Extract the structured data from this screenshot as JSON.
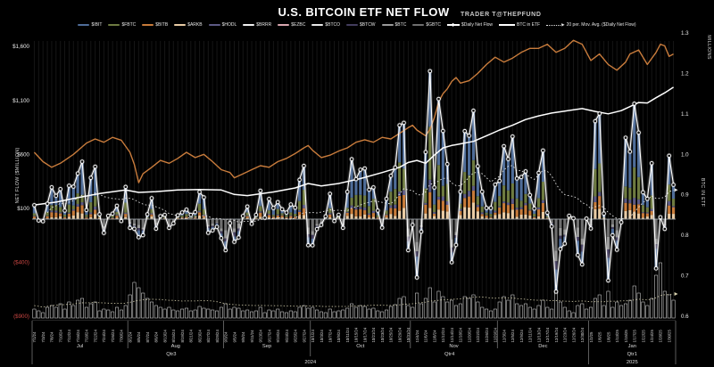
{
  "header": {
    "title": "U.S. BITCOIN ETF NET FLOW",
    "subtitle": "TRADER T@THEPFUND"
  },
  "axes": {
    "left": {
      "title": "NET FLOW ($MILLION)",
      "ticks": [
        {
          "label": "$1,600",
          "value": 1600
        },
        {
          "label": "$1,100",
          "value": 1100
        },
        {
          "label": "$600",
          "value": 600
        },
        {
          "label": "$100",
          "value": 100
        },
        {
          "label": "($400)",
          "value": -400
        },
        {
          "label": "($900)",
          "value": -900
        }
      ]
    },
    "right": {
      "title": "BTC IN ETF",
      "unit_label": "MILLIONS",
      "ticks": [
        {
          "label": "1.3",
          "value": 1.3
        },
        {
          "label": "1.2",
          "value": 1.2
        },
        {
          "label": "1.1",
          "value": 1.1
        },
        {
          "label": "1.0",
          "value": 1.0
        },
        {
          "label": "0.9",
          "value": 0.9
        },
        {
          "label": "0.8",
          "value": 0.8
        },
        {
          "label": "0.7",
          "value": 0.7
        },
        {
          "label": "0.6",
          "value": 0.6
        }
      ]
    }
  },
  "legend": {
    "etfs": [
      {
        "label": "$IBIT",
        "color": "#4f6d99"
      },
      {
        "label": "$FBTC",
        "color": "#6e7b41"
      },
      {
        "label": "$BITB",
        "color": "#c77b3a"
      },
      {
        "label": "$ARKB",
        "color": "#e9cba4"
      },
      {
        "label": "$HODL",
        "color": "#5d5a85"
      },
      {
        "label": "$BRRR",
        "color": "#f0f0f0"
      },
      {
        "label": "$EZBC",
        "color": "#d9a7b0"
      },
      {
        "label": "$BTCO",
        "color": "#e8e8e8"
      },
      {
        "label": "$BTCW",
        "color": "#433d5e"
      },
      {
        "label": "$BTC",
        "color": "#9a9a9a"
      },
      {
        "label": "$GBTC",
        "color": "#6f6f6f"
      }
    ],
    "lines": [
      {
        "label": "$Daily Net Flow",
        "style": "marker"
      },
      {
        "label": "BTC in ETF",
        "style": "solid"
      },
      {
        "label": "20 per. Mov. Avg. ($Daily Net Flow)",
        "style": "dotted-arrow"
      }
    ]
  },
  "colors": {
    "background": "#000000",
    "daily_line": "#ffffff",
    "btc_in_etf_line": "#ffffff",
    "orange_line": "#c97c3c",
    "ma_line": "#e6e6e6",
    "activity_outline": "#c8c8c8",
    "activity_ma": "#d8d2ae",
    "grid": "#161616",
    "zero_line": "#9aa0a6",
    "separator": "#9b9b9b",
    "tick": "#e9e9e9",
    "negative_tick": "#cc4743",
    "date": "#d6d6d6"
  },
  "chart_data": {
    "type": "composite",
    "ylim_left": [
      -900,
      1600
    ],
    "ylim_right": [
      0.6,
      1.3
    ],
    "ma_window": 20,
    "months": [
      [
        "Jul",
        "7",
        "24",
        [
          1,
          2,
          3,
          5,
          8,
          9,
          10,
          11,
          12,
          15,
          16,
          17,
          18,
          19,
          22,
          23,
          24,
          25,
          26,
          29,
          30,
          31
        ]
      ],
      [
        "Aug",
        "8",
        "24",
        [
          1,
          2,
          5,
          6,
          7,
          8,
          9,
          12,
          13,
          14,
          15,
          16,
          19,
          20,
          21,
          22,
          23,
          26,
          27,
          28,
          29,
          30
        ]
      ],
      [
        "Sep",
        "9",
        "24",
        [
          3,
          4,
          5,
          6,
          9,
          10,
          11,
          12,
          13,
          16,
          17,
          18,
          19,
          20,
          23,
          24,
          25,
          26,
          27,
          30
        ]
      ],
      [
        "Oct",
        "10",
        "24",
        [
          1,
          2,
          3,
          4,
          7,
          8,
          9,
          10,
          11,
          14,
          15,
          16,
          17,
          18,
          21,
          22,
          23,
          24,
          25,
          28,
          29,
          30,
          31
        ]
      ],
      [
        "Nov",
        "11",
        "24",
        [
          1,
          4,
          5,
          6,
          7,
          8,
          11,
          12,
          13,
          14,
          15,
          18,
          19,
          20,
          21,
          22,
          25,
          26,
          27,
          29
        ]
      ],
      [
        "Dec",
        "12",
        "24",
        [
          2,
          3,
          4,
          5,
          6,
          9,
          10,
          11,
          12,
          13,
          16,
          17,
          18,
          19,
          20,
          23,
          24,
          26,
          27,
          30,
          31
        ]
      ],
      [
        "Jan",
        "1",
        "25",
        [
          2,
          3,
          6,
          7,
          8,
          10,
          13,
          14,
          15,
          16,
          17,
          21,
          22,
          23,
          24,
          27,
          28,
          29,
          30,
          31
        ]
      ]
    ],
    "quarters": [
      {
        "label": "Qtr3",
        "month_span": [
          0,
          2
        ]
      },
      {
        "label": "Qtr4",
        "month_span": [
          3,
          5
        ]
      },
      {
        "label": "Qtr1",
        "month_span": [
          6,
          6
        ]
      }
    ],
    "years": [
      {
        "label": "2024",
        "month_span": [
          0,
          5
        ]
      },
      {
        "label": "2025",
        "month_span": [
          6,
          6
        ]
      }
    ],
    "net_flow": [
      129,
      -13,
      -20,
      143,
      295,
      216,
      279,
      79,
      310,
      301,
      423,
      533,
      84,
      383,
      486,
      45,
      -128,
      31,
      51,
      124,
      -18,
      299,
      -81,
      -90,
      -168,
      -149,
      45,
      194,
      -89,
      28,
      39,
      -81,
      -39,
      36,
      62,
      88,
      39,
      65,
      252,
      202,
      -127,
      -105,
      -71,
      -176,
      -288,
      -37,
      -211,
      -170,
      29,
      117,
      -44,
      39,
      263,
      13,
      187,
      103,
      158,
      92,
      61,
      136,
      106,
      365,
      494,
      -242,
      -243,
      -92,
      -54,
      26,
      235,
      -18,
      40,
      -81,
      253,
      556,
      371,
      458,
      470,
      273,
      294,
      79,
      -79,
      188,
      402,
      479,
      870,
      893,
      -288,
      -54,
      -541,
      -116,
      622,
      1372,
      293,
      1114,
      817,
      510,
      -400,
      -239,
      254,
      816,
      773,
      1005,
      490,
      254,
      103,
      103,
      320,
      354,
      676,
      557,
      766,
      377,
      390,
      443,
      223,
      98,
      429,
      636,
      60,
      -68,
      -672,
      -277,
      -227,
      31,
      8,
      -333,
      -420,
      5,
      -87,
      908,
      979,
      52,
      -569,
      -149,
      -284,
      -29,
      755,
      626,
      1070,
      802,
      249,
      188,
      518,
      -457,
      18,
      -91,
      588,
      318
    ],
    "activity": [
      10,
      8,
      6,
      12,
      14,
      12,
      16,
      10,
      18,
      14,
      20,
      22,
      12,
      16,
      18,
      8,
      10,
      9,
      7,
      12,
      9,
      14,
      26,
      40,
      34,
      28,
      22,
      18,
      14,
      12,
      10,
      12,
      9,
      8,
      10,
      11,
      8,
      9,
      13,
      11,
      10,
      9,
      8,
      12,
      16,
      10,
      12,
      11,
      8,
      9,
      7,
      8,
      12,
      6,
      9,
      8,
      10,
      7,
      6,
      8,
      7,
      12,
      14,
      11,
      12,
      9,
      7,
      6,
      10,
      7,
      8,
      9,
      11,
      16,
      12,
      14,
      13,
      10,
      11,
      8,
      7,
      9,
      13,
      15,
      22,
      24,
      14,
      12,
      28,
      16,
      22,
      34,
      18,
      30,
      24,
      18,
      20,
      14,
      16,
      24,
      22,
      26,
      18,
      12,
      10,
      8,
      10,
      18,
      24,
      20,
      26,
      16,
      14,
      16,
      12,
      10,
      14,
      20,
      12,
      10,
      28,
      18,
      12,
      8,
      6,
      14,
      16,
      10,
      12,
      22,
      26,
      14,
      30,
      12,
      18,
      14,
      16,
      20,
      36,
      28,
      18,
      14,
      22,
      48,
      62,
      30,
      26,
      20
    ],
    "btc_in_etf_line": [
      [
        0,
        0.875
      ],
      [
        5,
        0.882
      ],
      [
        10,
        0.893
      ],
      [
        15,
        0.903
      ],
      [
        21,
        0.912
      ],
      [
        24,
        0.906
      ],
      [
        28,
        0.908
      ],
      [
        33,
        0.912
      ],
      [
        38,
        0.913
      ],
      [
        43,
        0.912
      ],
      [
        46,
        0.901
      ],
      [
        49,
        0.898
      ],
      [
        55,
        0.907
      ],
      [
        60,
        0.917
      ],
      [
        63,
        0.928
      ],
      [
        66,
        0.922
      ],
      [
        70,
        0.928
      ],
      [
        75,
        0.94
      ],
      [
        80,
        0.955
      ],
      [
        84,
        0.968
      ],
      [
        86,
        0.98
      ],
      [
        88,
        0.985
      ],
      [
        90,
        0.978
      ],
      [
        92,
        0.998
      ],
      [
        94,
        1.016
      ],
      [
        96,
        1.022
      ],
      [
        98,
        1.026
      ],
      [
        101,
        1.032
      ],
      [
        104,
        1.046
      ],
      [
        107,
        1.06
      ],
      [
        110,
        1.072
      ],
      [
        113,
        1.086
      ],
      [
        116,
        1.095
      ],
      [
        119,
        1.102
      ],
      [
        122,
        1.107
      ],
      [
        126,
        1.113
      ],
      [
        129,
        1.106
      ],
      [
        132,
        1.1
      ],
      [
        135,
        1.108
      ],
      [
        137,
        1.118
      ],
      [
        139,
        1.128
      ],
      [
        141,
        1.127
      ],
      [
        143,
        1.14
      ],
      [
        145,
        1.152
      ],
      [
        147,
        1.166
      ]
    ],
    "orange_line": [
      [
        0,
        1.005
      ],
      [
        2,
        0.982
      ],
      [
        4,
        0.968
      ],
      [
        6,
        0.978
      ],
      [
        9,
        1.0
      ],
      [
        12,
        1.028
      ],
      [
        14,
        1.038
      ],
      [
        16,
        1.03
      ],
      [
        18,
        1.042
      ],
      [
        20,
        1.035
      ],
      [
        22,
        1.005
      ],
      [
        23,
        0.975
      ],
      [
        24,
        0.93
      ],
      [
        25,
        0.952
      ],
      [
        27,
        0.968
      ],
      [
        29,
        0.985
      ],
      [
        31,
        0.978
      ],
      [
        33,
        0.99
      ],
      [
        35,
        1.005
      ],
      [
        37,
        0.992
      ],
      [
        39,
        1.0
      ],
      [
        41,
        0.982
      ],
      [
        43,
        0.962
      ],
      [
        45,
        0.955
      ],
      [
        46,
        0.942
      ],
      [
        48,
        0.952
      ],
      [
        50,
        0.962
      ],
      [
        52,
        0.972
      ],
      [
        54,
        0.968
      ],
      [
        56,
        0.982
      ],
      [
        58,
        0.99
      ],
      [
        60,
        1.002
      ],
      [
        62,
        1.016
      ],
      [
        63,
        1.022
      ],
      [
        64,
        1.01
      ],
      [
        66,
        0.992
      ],
      [
        68,
        0.998
      ],
      [
        70,
        1.008
      ],
      [
        72,
        1.016
      ],
      [
        74,
        1.03
      ],
      [
        76,
        1.036
      ],
      [
        78,
        1.03
      ],
      [
        80,
        1.042
      ],
      [
        82,
        1.038
      ],
      [
        84,
        1.052
      ],
      [
        86,
        1.066
      ],
      [
        87,
        1.072
      ],
      [
        88,
        1.06
      ],
      [
        90,
        1.046
      ],
      [
        91,
        1.062
      ],
      [
        92,
        1.09
      ],
      [
        93,
        1.13
      ],
      [
        94,
        1.15
      ],
      [
        95,
        1.162
      ],
      [
        96,
        1.18
      ],
      [
        97,
        1.19
      ],
      [
        98,
        1.176
      ],
      [
        100,
        1.182
      ],
      [
        102,
        1.2
      ],
      [
        104,
        1.222
      ],
      [
        106,
        1.24
      ],
      [
        108,
        1.228
      ],
      [
        110,
        1.238
      ],
      [
        112,
        1.252
      ],
      [
        114,
        1.262
      ],
      [
        116,
        1.262
      ],
      [
        118,
        1.272
      ],
      [
        120,
        1.252
      ],
      [
        122,
        1.262
      ],
      [
        124,
        1.282
      ],
      [
        126,
        1.272
      ],
      [
        128,
        1.232
      ],
      [
        130,
        1.248
      ],
      [
        132,
        1.222
      ],
      [
        134,
        1.208
      ],
      [
        136,
        1.228
      ],
      [
        137,
        1.248
      ],
      [
        139,
        1.258
      ],
      [
        141,
        1.222
      ],
      [
        143,
        1.252
      ],
      [
        144,
        1.272
      ],
      [
        145,
        1.268
      ],
      [
        146,
        1.242
      ],
      [
        147,
        1.248
      ]
    ],
    "positive_stack": [
      {
        "etf": "$ARKB",
        "frac": 0.1
      },
      {
        "etf": "$BITB",
        "frac": 0.12
      },
      {
        "etf": "$HODL",
        "frac": 0.05
      },
      {
        "etf": "$FBTC",
        "frac": 0.23
      },
      {
        "etf": "$IBIT",
        "frac": 0.5
      }
    ],
    "negative_stack": [
      {
        "etf": "$GBTC",
        "frac": 0.4
      },
      {
        "etf": "$BTC",
        "frac": 0.2
      },
      {
        "etf": "$BTCW",
        "frac": 0.1
      },
      {
        "etf": "$IBIT",
        "frac": 0.3
      }
    ]
  }
}
